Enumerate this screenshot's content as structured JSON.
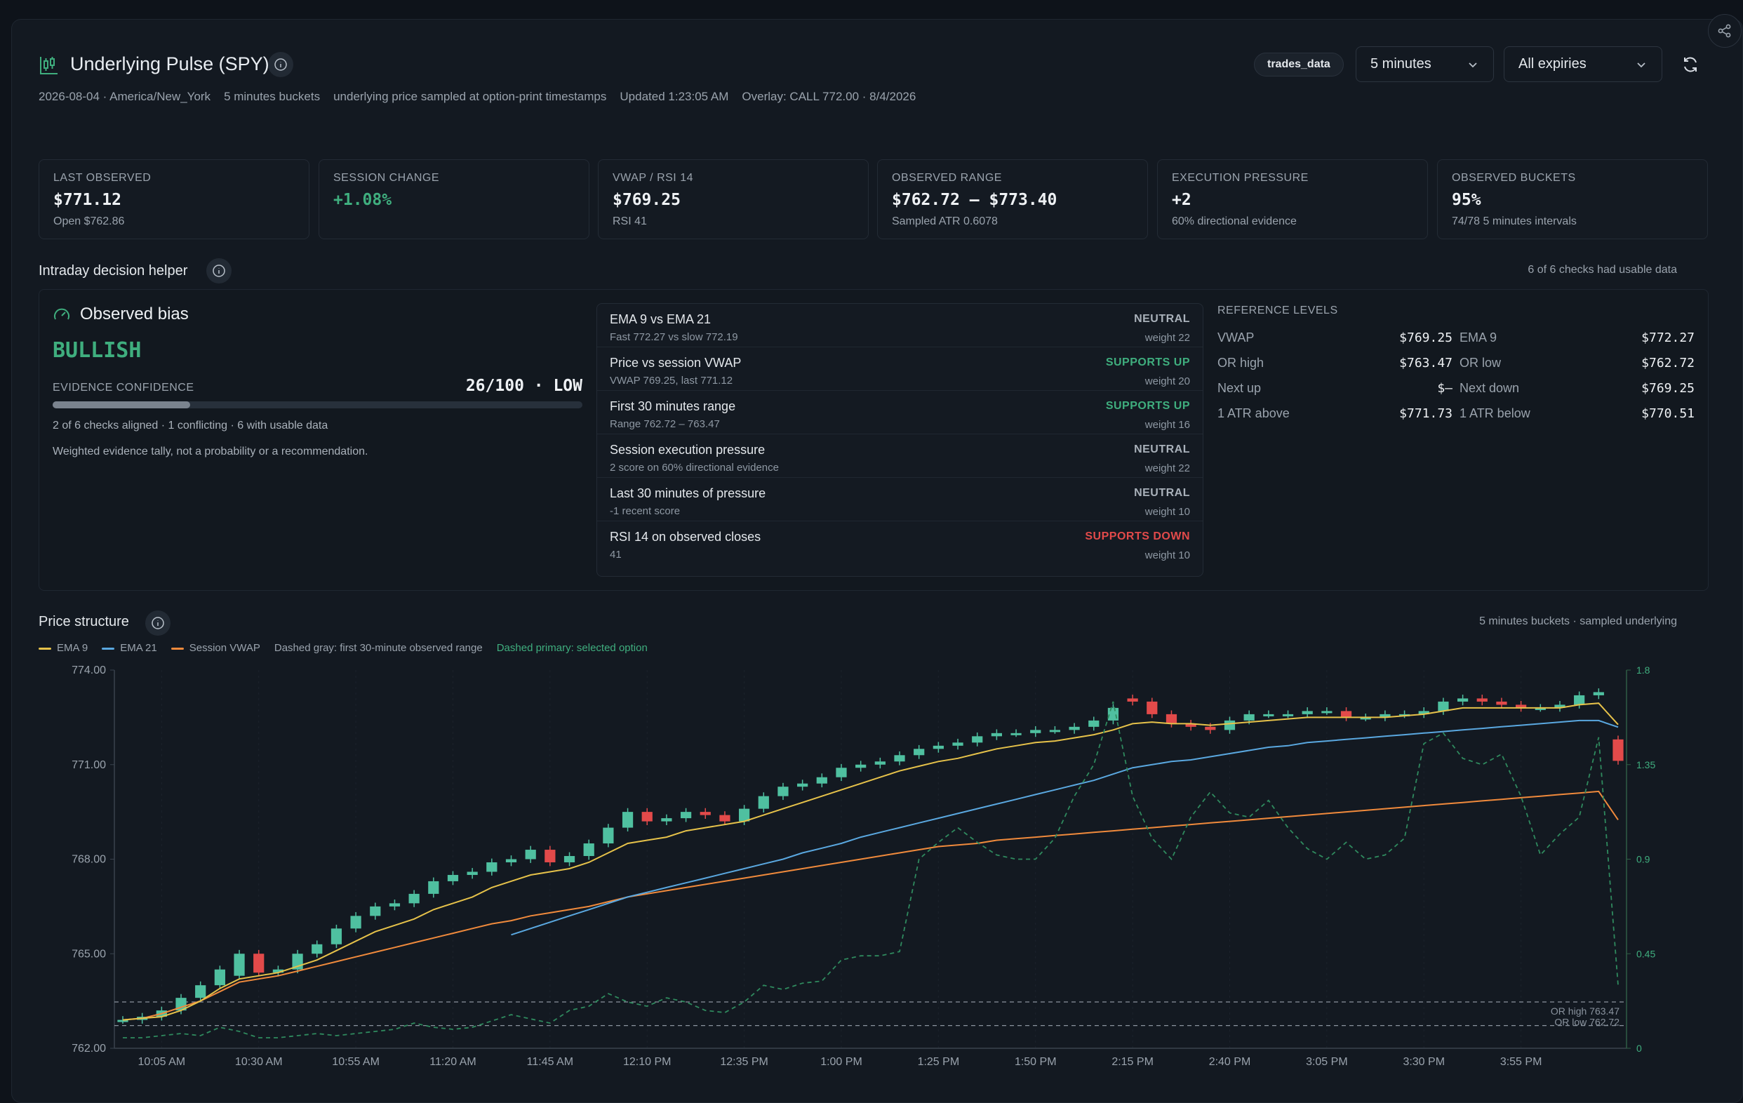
{
  "header": {
    "title": "Underlying Pulse (SPY)",
    "meta": [
      "2026-08-04 · America/New_York",
      "5 minutes buckets",
      "underlying price sampled at option-print timestamps",
      "Updated 1:23:05 AM",
      "Overlay: CALL 772.00 · 8/4/2026"
    ],
    "source_pill": "trades_data",
    "interval_select": "5 minutes",
    "expiry_select": "All expiries"
  },
  "cards": [
    {
      "label": "LAST OBSERVED",
      "value": "$771.12",
      "sub": "Open $762.86"
    },
    {
      "label": "SESSION CHANGE",
      "value": "+1.08%",
      "sub": ""
    },
    {
      "label": "VWAP / RSI 14",
      "value": "$769.25",
      "sub": "RSI 41"
    },
    {
      "label": "OBSERVED RANGE",
      "value": "$762.72 – $773.40",
      "sub": "Sampled ATR 0.6078"
    },
    {
      "label": "EXECUTION PRESSURE",
      "value": "+2",
      "sub": "60% directional evidence"
    },
    {
      "label": "OBSERVED BUCKETS",
      "value": "95%",
      "sub": "74/78 5 minutes intervals"
    }
  ],
  "decision": {
    "title": "Intraday decision helper",
    "checks_note": "6 of 6 checks had usable data",
    "bias_label": "Observed bias",
    "bias_value": "BULLISH",
    "confidence_label": "EVIDENCE CONFIDENCE",
    "confidence_value": "26/100 · LOW",
    "confidence_fraction": 0.26,
    "aligned_text": "2 of 6 checks aligned · 1 conflicting · 6 with usable data",
    "disclaimer": "Weighted evidence tally, not a probability or a recommendation.",
    "checks": [
      {
        "name": "EMA 9 vs EMA 21",
        "detail": "Fast 772.27 vs slow 772.19",
        "verdict": "NEUTRAL",
        "weight": "weight 22",
        "tone": "neutral"
      },
      {
        "name": "Price vs session VWAP",
        "detail": "VWAP 769.25, last 771.12",
        "verdict": "SUPPORTS UP",
        "weight": "weight 20",
        "tone": "up"
      },
      {
        "name": "First 30 minutes range",
        "detail": "Range 762.72 – 763.47",
        "verdict": "SUPPORTS UP",
        "weight": "weight 16",
        "tone": "up"
      },
      {
        "name": "Session execution pressure",
        "detail": "2 score on 60% directional evidence",
        "verdict": "NEUTRAL",
        "weight": "weight 22",
        "tone": "neutral"
      },
      {
        "name": "Last 30 minutes of pressure",
        "detail": "-1 recent score",
        "verdict": "NEUTRAL",
        "weight": "weight 10",
        "tone": "neutral"
      },
      {
        "name": "RSI 14 on observed closes",
        "detail": "41",
        "verdict": "SUPPORTS DOWN",
        "weight": "weight 10",
        "tone": "down"
      }
    ],
    "reference_title": "REFERENCE LEVELS",
    "reference": [
      {
        "label": "VWAP",
        "value": "$769.25",
        "label2": "EMA 9",
        "value2": "$772.27"
      },
      {
        "label": "OR high",
        "value": "$763.47",
        "label2": "OR low",
        "value2": "$762.72"
      },
      {
        "label": "Next up",
        "value": "$—",
        "label2": "Next down",
        "value2": "$769.25"
      },
      {
        "label": "1 ATR above",
        "value": "$771.73",
        "label2": "1 ATR below",
        "value2": "$770.51"
      }
    ]
  },
  "price_structure": {
    "title": "Price structure",
    "right_note": "5 minutes buckets · sampled underlying",
    "legend": [
      "EMA 9",
      "EMA 21",
      "Session VWAP",
      "Dashed gray: first 30-minute observed range",
      "Dashed primary: selected option"
    ]
  },
  "colors": {
    "up": "#3fae7e",
    "down": "#e24a4a",
    "candle_up": "#4fc0a0",
    "ema9": "#e6c24a",
    "ema21": "#5aa8e0",
    "vwap": "#f08a3c",
    "option": "#2f8a5e"
  },
  "chart_data": {
    "type": "candlestick",
    "x": [
      "10:05 AM",
      "10:30 AM",
      "10:55 AM",
      "11:20 AM",
      "11:45 AM",
      "12:10 PM",
      "12:35 PM",
      "1:00 PM",
      "1:25 PM",
      "1:50 PM",
      "2:15 PM",
      "2:40 PM",
      "3:05 PM",
      "3:30 PM",
      "3:55 PM"
    ],
    "ylim": [
      762.0,
      774.0
    ],
    "y_ticks": [
      "762.00",
      "765.00",
      "768.00",
      "771.00",
      "774.00"
    ],
    "y2lim": [
      0,
      1.8
    ],
    "y2_ticks": [
      "0",
      "0.45",
      "0.9",
      "1.35",
      "1.8"
    ],
    "or_high": 763.47,
    "or_low": 762.72,
    "or_high_label": "OR high 763.47",
    "or_low_label": "OR low 762.72",
    "closes": [
      762.9,
      763.0,
      763.2,
      763.6,
      764.0,
      764.5,
      765.0,
      764.4,
      764.5,
      765.0,
      765.3,
      765.8,
      766.2,
      766.5,
      766.6,
      766.9,
      767.3,
      767.5,
      767.6,
      767.9,
      768.0,
      768.3,
      767.9,
      768.1,
      768.5,
      769.0,
      769.5,
      769.2,
      769.3,
      769.5,
      769.4,
      769.2,
      769.6,
      770.0,
      770.3,
      770.4,
      770.6,
      770.9,
      771.0,
      771.1,
      771.3,
      771.5,
      771.6,
      771.7,
      771.9,
      772.0,
      772.0,
      772.1,
      772.1,
      772.2,
      772.4,
      772.8,
      773.0,
      772.6,
      772.3,
      772.2,
      772.1,
      772.4,
      772.6,
      772.6,
      772.6,
      772.7,
      772.7,
      772.5,
      772.5,
      772.6,
      772.6,
      772.7,
      773.0,
      773.1,
      773.0,
      772.9,
      772.8,
      772.8,
      772.9,
      773.2,
      773.3,
      771.12
    ],
    "opens": [
      762.9,
      762.9,
      763.0,
      763.2,
      763.6,
      764.0,
      764.3,
      765.0,
      764.4,
      764.5,
      765.0,
      765.3,
      765.8,
      766.2,
      766.5,
      766.6,
      766.9,
      767.3,
      767.5,
      767.6,
      767.9,
      768.0,
      768.3,
      767.9,
      768.1,
      768.5,
      769.0,
      769.5,
      769.2,
      769.3,
      769.5,
      769.4,
      769.2,
      769.6,
      770.0,
      770.3,
      770.4,
      770.6,
      770.9,
      771.0,
      771.1,
      771.3,
      771.5,
      771.6,
      771.7,
      771.9,
      772.0,
      772.0,
      772.1,
      772.1,
      772.2,
      772.4,
      773.1,
      773.0,
      772.6,
      772.3,
      772.2,
      772.1,
      772.4,
      772.6,
      772.6,
      772.6,
      772.7,
      772.7,
      772.5,
      772.5,
      772.6,
      772.6,
      772.7,
      773.0,
      773.1,
      773.0,
      772.9,
      772.8,
      772.8,
      772.9,
      773.2,
      771.8
    ],
    "ema9": [
      762.9,
      762.95,
      763.0,
      763.2,
      763.5,
      763.9,
      764.2,
      764.3,
      764.4,
      764.6,
      764.8,
      765.1,
      765.4,
      765.7,
      765.9,
      766.1,
      766.4,
      766.6,
      766.8,
      767.1,
      767.3,
      767.5,
      767.6,
      767.7,
      767.9,
      768.2,
      768.5,
      768.6,
      768.7,
      768.9,
      769.0,
      769.1,
      769.2,
      769.4,
      769.6,
      769.8,
      770.0,
      770.2,
      770.4,
      770.6,
      770.8,
      770.95,
      771.1,
      771.2,
      771.35,
      771.5,
      771.6,
      771.7,
      771.75,
      771.85,
      771.95,
      772.1,
      772.3,
      772.35,
      772.3,
      772.3,
      772.25,
      772.3,
      772.35,
      772.4,
      772.45,
      772.5,
      772.5,
      772.5,
      772.5,
      772.5,
      772.55,
      772.6,
      772.7,
      772.8,
      772.8,
      772.8,
      772.8,
      772.8,
      772.8,
      772.9,
      772.95,
      772.27
    ],
    "ema21": [
      null,
      null,
      null,
      null,
      null,
      null,
      null,
      null,
      null,
      null,
      null,
      null,
      null,
      null,
      null,
      null,
      null,
      null,
      null,
      null,
      765.6,
      765.8,
      766.0,
      766.2,
      766.4,
      766.6,
      766.8,
      766.95,
      767.1,
      767.25,
      767.4,
      767.55,
      767.7,
      767.85,
      768.0,
      768.2,
      768.35,
      768.5,
      768.7,
      768.85,
      769.0,
      769.15,
      769.3,
      769.45,
      769.6,
      769.75,
      769.9,
      770.05,
      770.2,
      770.35,
      770.5,
      770.7,
      770.9,
      771.0,
      771.1,
      771.15,
      771.25,
      771.35,
      771.45,
      771.55,
      771.6,
      771.7,
      771.75,
      771.8,
      771.85,
      771.9,
      771.95,
      772.0,
      772.05,
      772.1,
      772.15,
      772.2,
      772.25,
      772.3,
      772.35,
      772.4,
      772.4,
      772.19
    ],
    "vwap": [
      762.9,
      762.95,
      763.1,
      763.3,
      763.5,
      763.8,
      764.1,
      764.2,
      764.3,
      764.45,
      764.6,
      764.75,
      764.9,
      765.05,
      765.2,
      765.35,
      765.5,
      765.65,
      765.8,
      765.95,
      766.05,
      766.2,
      766.3,
      766.4,
      766.5,
      766.65,
      766.8,
      766.9,
      767.0,
      767.1,
      767.2,
      767.3,
      767.4,
      767.5,
      767.6,
      767.7,
      767.8,
      767.9,
      768.0,
      768.1,
      768.2,
      768.3,
      768.4,
      768.45,
      768.5,
      768.6,
      768.65,
      768.7,
      768.75,
      768.8,
      768.85,
      768.9,
      768.95,
      769.0,
      769.05,
      769.1,
      769.15,
      769.2,
      769.25,
      769.3,
      769.35,
      769.4,
      769.45,
      769.5,
      769.55,
      769.6,
      769.65,
      769.7,
      769.75,
      769.8,
      769.85,
      769.9,
      769.95,
      770.0,
      770.05,
      770.1,
      770.15,
      769.25
    ],
    "option": [
      0.05,
      0.05,
      0.06,
      0.07,
      0.06,
      0.1,
      0.08,
      0.05,
      0.05,
      0.06,
      0.07,
      0.06,
      0.07,
      0.08,
      0.09,
      0.12,
      0.1,
      0.09,
      0.1,
      0.13,
      0.16,
      0.14,
      0.12,
      0.18,
      0.2,
      0.26,
      0.22,
      0.2,
      0.24,
      0.22,
      0.18,
      0.17,
      0.22,
      0.3,
      0.28,
      0.31,
      0.32,
      0.42,
      0.44,
      0.44,
      0.46,
      0.9,
      0.98,
      1.05,
      0.98,
      0.92,
      0.9,
      0.9,
      1.0,
      1.2,
      1.35,
      1.65,
      1.2,
      1.0,
      0.9,
      1.1,
      1.22,
      1.12,
      1.1,
      1.18,
      1.05,
      0.95,
      0.9,
      0.98,
      0.9,
      0.92,
      1.0,
      1.45,
      1.5,
      1.38,
      1.35,
      1.4,
      1.2,
      0.92,
      1.02,
      1.1,
      1.48,
      0.3
    ]
  }
}
